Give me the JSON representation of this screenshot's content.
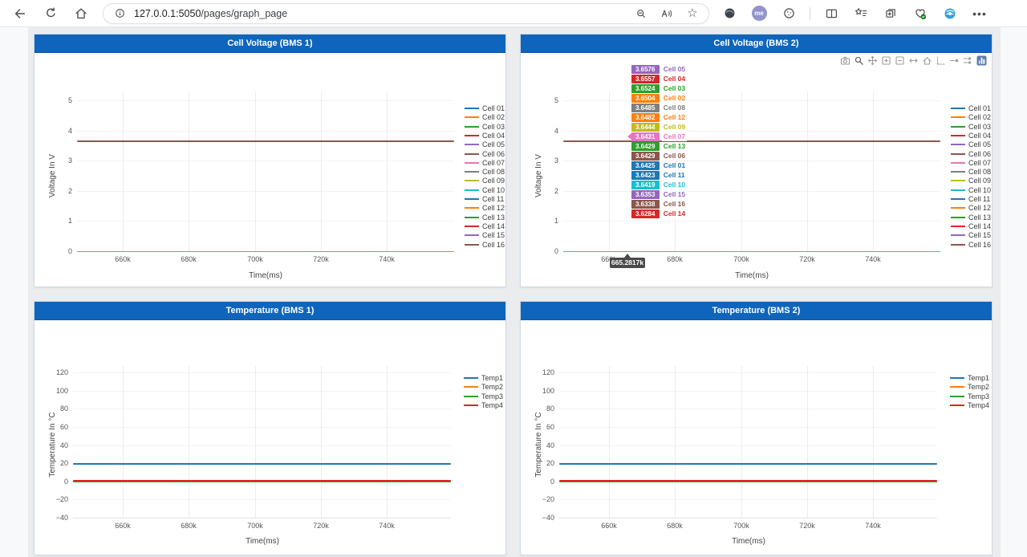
{
  "browser": {
    "url_host": "127.0.0.1:5050",
    "url_path": "/pages/graph_page",
    "profile_label": "me",
    "toolbar_icons_left": [
      "back-icon",
      "refresh-icon",
      "home-icon"
    ],
    "addressbar_icons": [
      "info-icon",
      "zoom-indicator-icon",
      "read-aloud-icon",
      "favorite-star-icon"
    ],
    "toolbar_icons_right": [
      "extension-sphere-icon",
      "profile-avatar",
      "extensions-cookie-icon",
      "split-screen-icon",
      "favorites-list-icon",
      "collections-icon",
      "browser-essentials-icon",
      "ie-mode-icon",
      "more-menu-icon"
    ]
  },
  "modebar_icons": [
    "camera-icon",
    "zoom-icon",
    "pan-icon",
    "zoom-in-icon",
    "zoom-out-icon",
    "autoscale-icon",
    "reset-axes-icon",
    "spikelines-icon",
    "hover-closest-icon",
    "hover-compare-icon",
    "plotly-logo-icon"
  ],
  "colors": {
    "header_blue": "#0f65bb",
    "page_bg": "#ebecee",
    "card_border": "#cfd9e4",
    "grid": "#ececec",
    "voltage_axis_line": "#c2807a"
  },
  "charts": [
    {
      "title": "Cell Voltage (BMS 1)",
      "y_title": "Voltage In V",
      "x_title": "Time(ms)",
      "legend": [
        {
          "label": "Cell 01",
          "color": "#1f77b4"
        },
        {
          "label": "Cell 02",
          "color": "#ff7f0e"
        },
        {
          "label": "Cell 03",
          "color": "#2ca02c"
        },
        {
          "label": "Cell 04",
          "color": "#d62728"
        },
        {
          "label": "Cell 05",
          "color": "#9467bd"
        },
        {
          "label": "Cell 06",
          "color": "#8c564b"
        },
        {
          "label": "Cell 07",
          "color": "#e377c2"
        },
        {
          "label": "Cell 08",
          "color": "#7f7f7f"
        },
        {
          "label": "Cell 09",
          "color": "#bcbd22"
        },
        {
          "label": "Cell 10",
          "color": "#17becf"
        },
        {
          "label": "Cell 11",
          "color": "#1f77b4"
        },
        {
          "label": "Cell 12",
          "color": "#ff7f0e"
        },
        {
          "label": "Cell 13",
          "color": "#2ca02c"
        },
        {
          "label": "Cell 14",
          "color": "#d62728"
        },
        {
          "label": "Cell 15",
          "color": "#9467bd"
        },
        {
          "label": "Cell 16",
          "color": "#8c564b"
        }
      ],
      "chart_data": {
        "type": "line",
        "x_tick_labels": [
          "660k",
          "680k",
          "700k",
          "720k",
          "740k"
        ],
        "x_tick_values": [
          660000,
          680000,
          700000,
          720000,
          740000
        ],
        "y_tick_labels": [
          "0",
          "1",
          "2",
          "3",
          "4",
          "5"
        ],
        "y_tick_values": [
          0,
          1,
          2,
          3,
          4,
          5
        ],
        "ylim": [
          0,
          5.4
        ],
        "series_names": [
          "Cell 01",
          "Cell 02",
          "Cell 03",
          "Cell 04",
          "Cell 05",
          "Cell 06",
          "Cell 07",
          "Cell 08",
          "Cell 09",
          "Cell 10",
          "Cell 11",
          "Cell 12",
          "Cell 13",
          "Cell 14",
          "Cell 15",
          "Cell 16"
        ],
        "flat_value_V": 3.643,
        "note": "all 16 cell traces overlap as one flat line near 3.64 V"
      }
    },
    {
      "title": "Cell Voltage (BMS 2)",
      "y_title": "Voltage In V",
      "x_title": "Time(ms)",
      "legend": [
        {
          "label": "Cell 01",
          "color": "#1f77b4"
        },
        {
          "label": "Cell 02",
          "color": "#ff7f0e"
        },
        {
          "label": "Cell 03",
          "color": "#2ca02c"
        },
        {
          "label": "Cell 04",
          "color": "#d62728"
        },
        {
          "label": "Cell 05",
          "color": "#9467bd"
        },
        {
          "label": "Cell 06",
          "color": "#8c564b"
        },
        {
          "label": "Cell 07",
          "color": "#e377c2"
        },
        {
          "label": "Cell 08",
          "color": "#7f7f7f"
        },
        {
          "label": "Cell 09",
          "color": "#bcbd22"
        },
        {
          "label": "Cell 10",
          "color": "#17becf"
        },
        {
          "label": "Cell 11",
          "color": "#1f77b4"
        },
        {
          "label": "Cell 12",
          "color": "#ff7f0e"
        },
        {
          "label": "Cell 13",
          "color": "#2ca02c"
        },
        {
          "label": "Cell 14",
          "color": "#d62728"
        },
        {
          "label": "Cell 15",
          "color": "#9467bd"
        },
        {
          "label": "Cell 16",
          "color": "#8c564b"
        }
      ],
      "chart_data": {
        "type": "line",
        "x_tick_labels": [
          "660k",
          "680k",
          "700k",
          "720k",
          "740k"
        ],
        "x_tick_values": [
          660000,
          680000,
          700000,
          720000,
          740000
        ],
        "y_tick_labels": [
          "0",
          "1",
          "2",
          "3",
          "4",
          "5"
        ],
        "y_tick_values": [
          0,
          1,
          2,
          3,
          4,
          5
        ],
        "ylim": [
          0,
          5.4
        ],
        "flat_value_V": 3.6432,
        "hover": {
          "x_label": "665.2817k",
          "x_value_ms": 665281.7,
          "readings": [
            {
              "cell": "Cell 05",
              "value": 3.6576,
              "color": "#9467bd"
            },
            {
              "cell": "Cell 04",
              "value": 3.6557,
              "color": "#d62728"
            },
            {
              "cell": "Cell 03",
              "value": 3.6524,
              "color": "#2ca02c"
            },
            {
              "cell": "Cell 02",
              "value": 3.6504,
              "color": "#ff7f0e"
            },
            {
              "cell": "Cell 08",
              "value": 3.6485,
              "color": "#7f7f7f"
            },
            {
              "cell": "Cell 12",
              "value": 3.6482,
              "color": "#ff7f0e"
            },
            {
              "cell": "Cell 09",
              "value": 3.6444,
              "color": "#bcbd22"
            },
            {
              "cell": "Cell 07",
              "value": 3.6431,
              "color": "#e377c2"
            },
            {
              "cell": "Cell 13",
              "value": 3.6429,
              "color": "#2ca02c"
            },
            {
              "cell": "Cell 06",
              "value": 3.6429,
              "color": "#8c564b"
            },
            {
              "cell": "Cell 01",
              "value": 3.6425,
              "color": "#1f77b4"
            },
            {
              "cell": "Cell 11",
              "value": 3.6423,
              "color": "#1f77b4"
            },
            {
              "cell": "Cell 10",
              "value": 3.6419,
              "color": "#17becf"
            },
            {
              "cell": "Cell 15",
              "value": 3.6353,
              "color": "#9467bd"
            },
            {
              "cell": "Cell 16",
              "value": 3.6338,
              "color": "#8c564b"
            },
            {
              "cell": "Cell 14",
              "value": 3.6284,
              "color": "#d62728"
            }
          ]
        }
      }
    },
    {
      "title": "Temperature (BMS 1)",
      "y_title": "Temperature In °C",
      "x_title": "Time(ms)",
      "legend": [
        {
          "label": "Temp1",
          "color": "#1f77b4"
        },
        {
          "label": "Temp2",
          "color": "#ff7f0e"
        },
        {
          "label": "Temp3",
          "color": "#2ca02c"
        },
        {
          "label": "Temp4",
          "color": "#d62728"
        }
      ],
      "chart_data": {
        "type": "line",
        "x_tick_labels": [
          "660k",
          "680k",
          "700k",
          "720k",
          "740k"
        ],
        "x_tick_values": [
          660000,
          680000,
          700000,
          720000,
          740000
        ],
        "y_tick_labels": [
          "−40",
          "−20",
          "0",
          "20",
          "40",
          "60",
          "80",
          "100",
          "120"
        ],
        "y_tick_values": [
          -40,
          -20,
          0,
          20,
          40,
          60,
          80,
          100,
          120
        ],
        "ylim": [
          -40,
          120
        ],
        "series": [
          {
            "name": "Temp1",
            "value_C": 19.5
          },
          {
            "name": "Temp2",
            "value_C": 0
          },
          {
            "name": "Temp3",
            "value_C": 0
          },
          {
            "name": "Temp4",
            "value_C": 0.3
          }
        ]
      }
    },
    {
      "title": "Temperature (BMS 2)",
      "y_title": "Temperature In °C",
      "x_title": "Time(ms)",
      "legend": [
        {
          "label": "Temp1",
          "color": "#1f77b4"
        },
        {
          "label": "Temp2",
          "color": "#ff7f0e"
        },
        {
          "label": "Temp3",
          "color": "#2ca02c"
        },
        {
          "label": "Temp4",
          "color": "#d62728"
        }
      ],
      "chart_data": {
        "type": "line",
        "x_tick_labels": [
          "660k",
          "680k",
          "700k",
          "720k",
          "740k"
        ],
        "x_tick_values": [
          660000,
          680000,
          700000,
          720000,
          740000
        ],
        "y_tick_labels": [
          "−40",
          "−20",
          "0",
          "20",
          "40",
          "60",
          "80",
          "100",
          "120"
        ],
        "y_tick_values": [
          -40,
          -20,
          0,
          20,
          40,
          60,
          80,
          100,
          120
        ],
        "ylim": [
          -40,
          120
        ],
        "series": [
          {
            "name": "Temp1",
            "value_C": 19.5
          },
          {
            "name": "Temp2",
            "value_C": 0
          },
          {
            "name": "Temp3",
            "value_C": 0
          },
          {
            "name": "Temp4",
            "value_C": 0.3
          }
        ]
      }
    }
  ]
}
